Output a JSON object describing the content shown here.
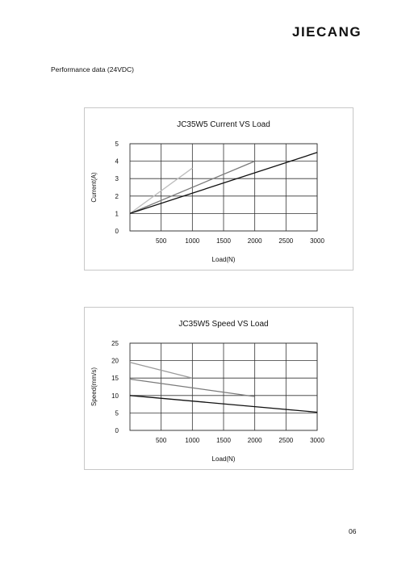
{
  "header": {
    "logo_text": "JIECANG"
  },
  "section_title": "Performance data (24VDC)",
  "page_number": "06",
  "chart_data": [
    {
      "type": "line",
      "title": "JC35W5 Current VS Load",
      "xlabel": "Load(N)",
      "ylabel": "Current(A)",
      "xlim": [
        0,
        3000
      ],
      "ylim": [
        0,
        5
      ],
      "x_ticks": [
        500,
        1000,
        1500,
        2000,
        2500,
        3000
      ],
      "y_ticks": [
        0,
        1,
        2,
        3,
        4,
        5
      ],
      "grid": true,
      "series": [
        {
          "color": "#bdbdbd",
          "points": [
            [
              0,
              1.0
            ],
            [
              1000,
              3.6
            ]
          ]
        },
        {
          "color": "#7a7a7a",
          "points": [
            [
              0,
              1.0
            ],
            [
              2000,
              4.0
            ]
          ]
        },
        {
          "color": "#111111",
          "points": [
            [
              0,
              1.0
            ],
            [
              3000,
              4.5
            ]
          ]
        }
      ]
    },
    {
      "type": "line",
      "title": "JC35W5 Speed VS Load",
      "xlabel": "Load(N)",
      "ylabel": "Speed(mm/s)",
      "xlim": [
        0,
        3000
      ],
      "ylim": [
        0,
        25
      ],
      "x_ticks": [
        500,
        1000,
        1500,
        2000,
        2500,
        3000
      ],
      "y_ticks": [
        0,
        5,
        10,
        15,
        20,
        25
      ],
      "grid": true,
      "series": [
        {
          "color": "#9a9a9a",
          "points": [
            [
              0,
              19.5
            ],
            [
              1000,
              15.0
            ]
          ]
        },
        {
          "color": "#7a7a7a",
          "points": [
            [
              0,
              14.7
            ],
            [
              2000,
              9.7
            ]
          ]
        },
        {
          "color": "#111111",
          "points": [
            [
              0,
              10.0
            ],
            [
              3000,
              5.2
            ]
          ]
        }
      ]
    }
  ]
}
